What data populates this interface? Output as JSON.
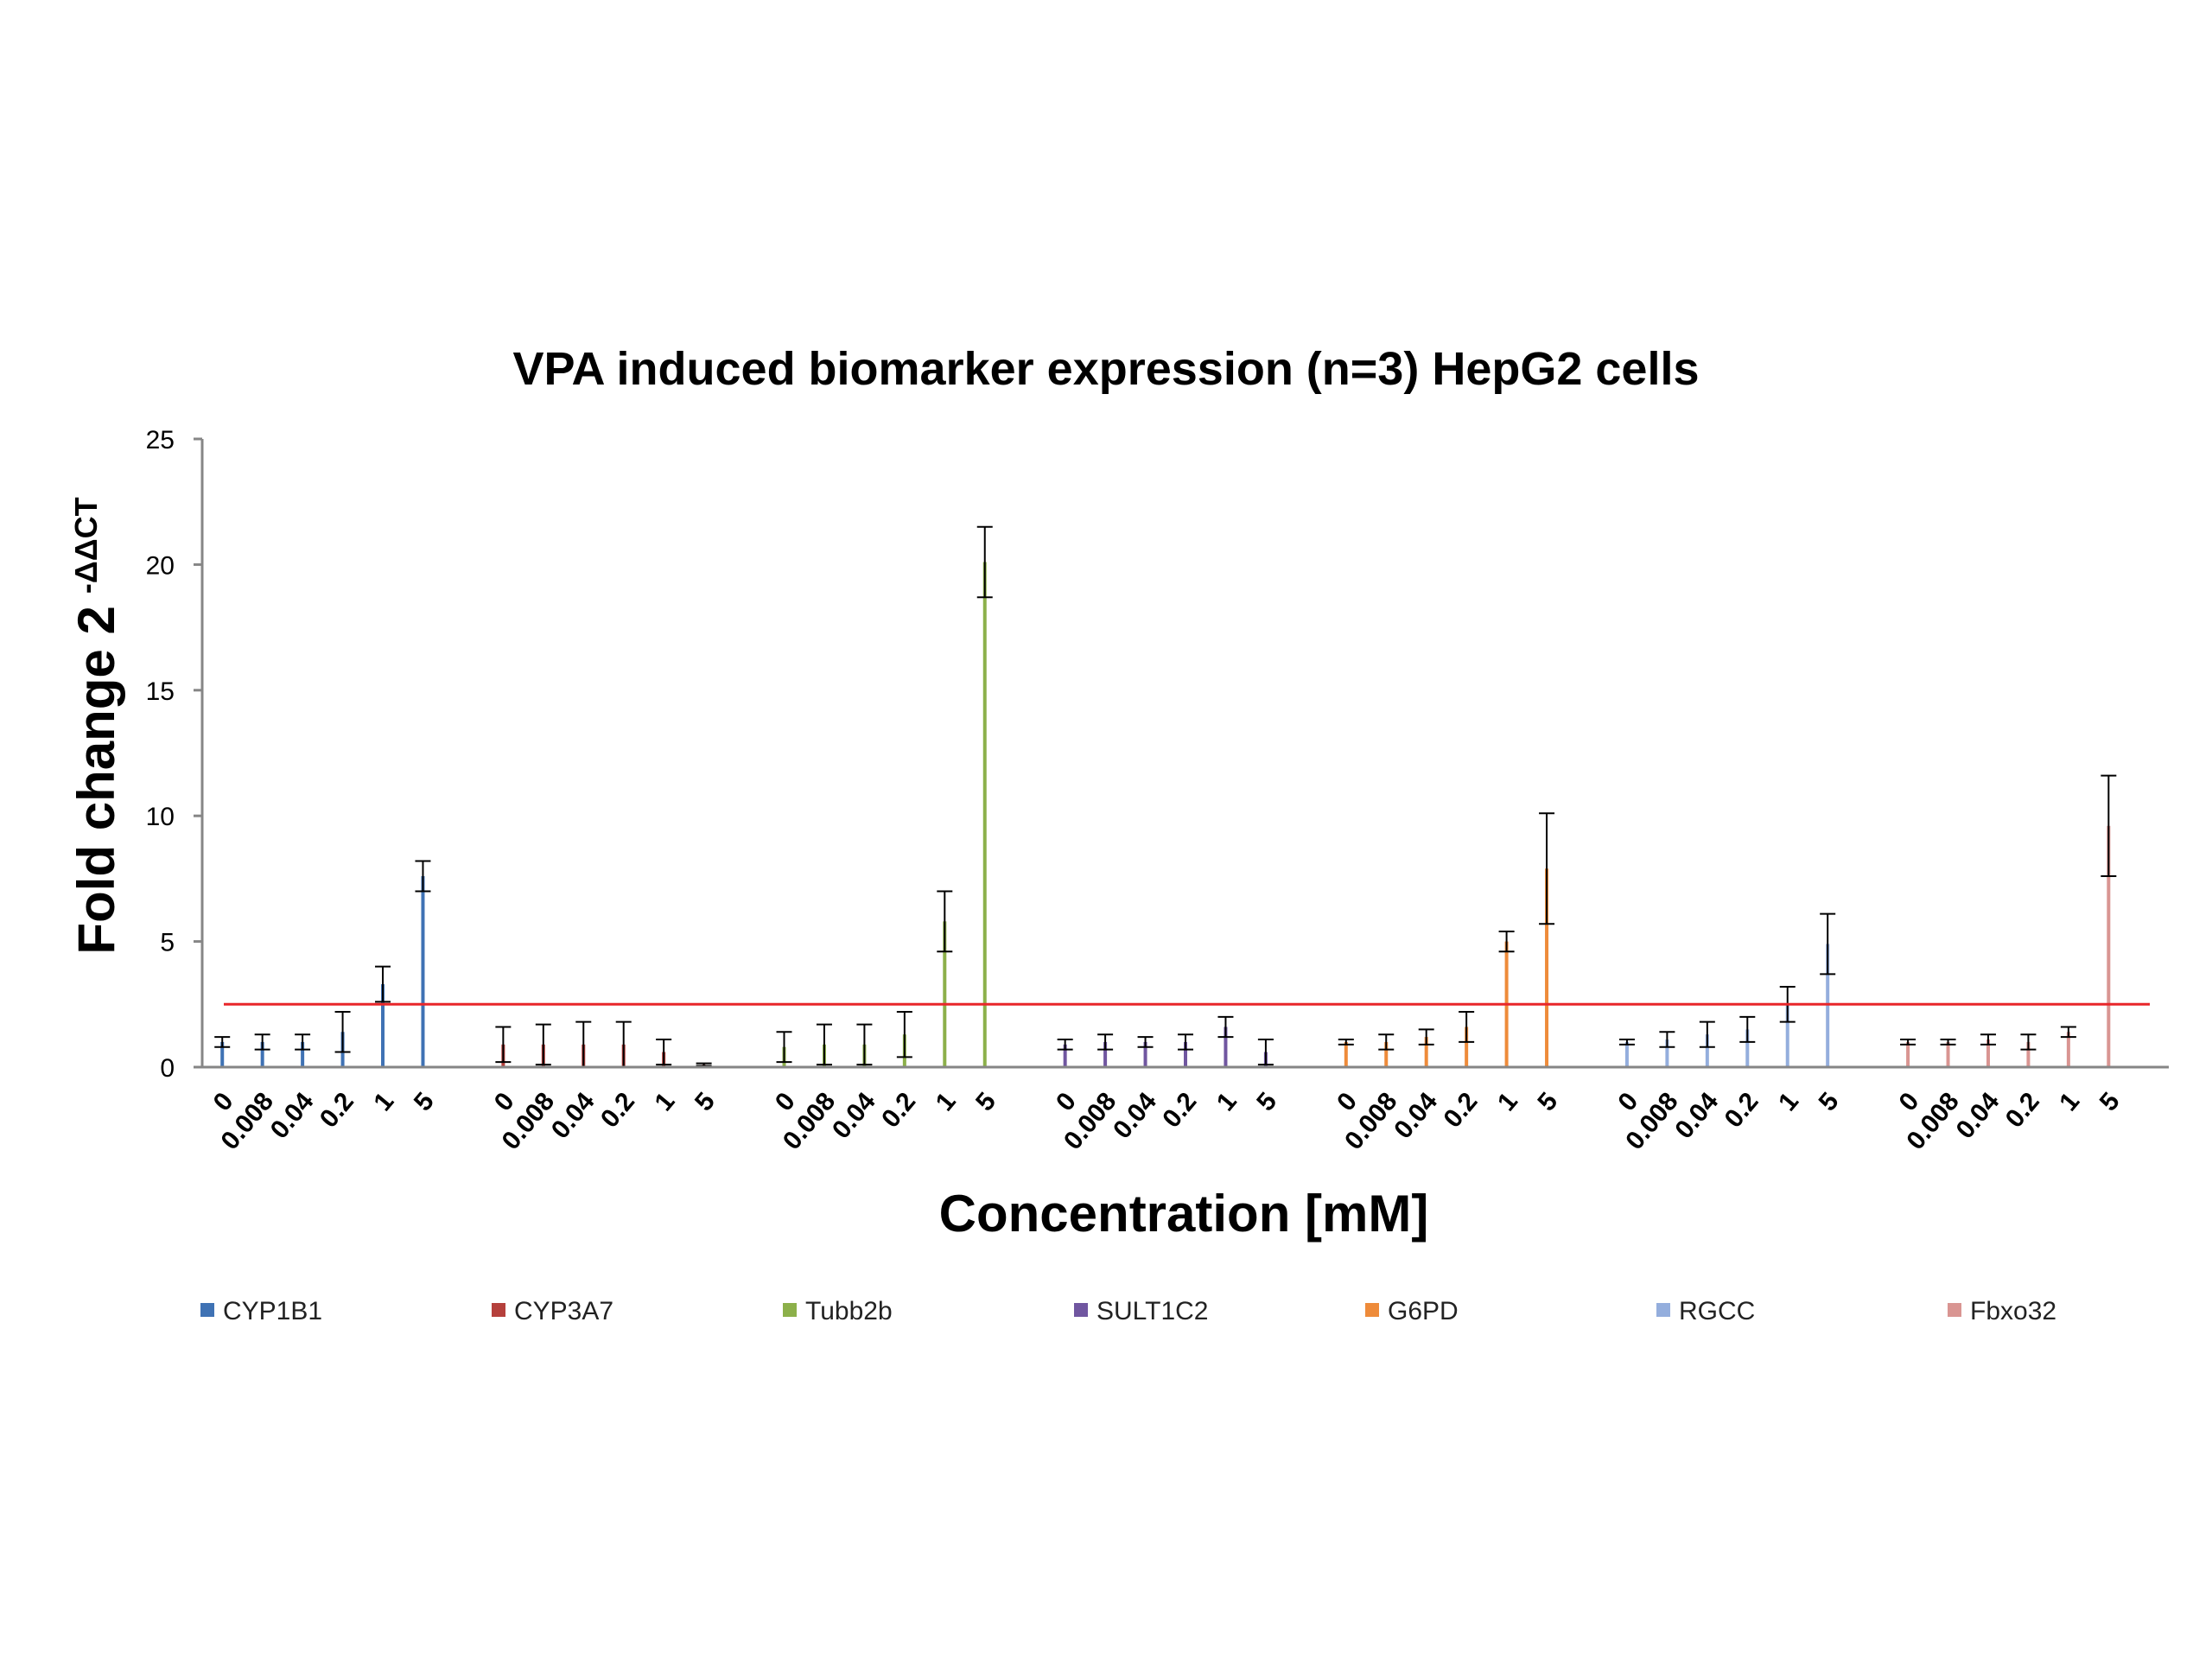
{
  "chart_data": {
    "type": "bar",
    "title": "VPA induced biomarker expression (n=3) HepG2 cells",
    "xlabel": "Concentration [mM]",
    "ylabel": "Fold change 2",
    "ylabel_superscript": "-ΔΔCT",
    "ylim": [
      0,
      25
    ],
    "yticks": [
      "0",
      "5",
      "10",
      "15",
      "20",
      "25"
    ],
    "categories": [
      "0",
      "0.008",
      "0.04",
      "0.2",
      "1",
      "5"
    ],
    "threshold_line": {
      "value": 2.5,
      "color": "#e8262a"
    },
    "legend_position": "bottom",
    "series": [
      {
        "name": "CYP1B1",
        "color": "#3f72b4",
        "values": [
          1.0,
          1.0,
          1.0,
          1.4,
          3.3,
          7.6
        ],
        "errors": [
          0.2,
          0.3,
          0.3,
          0.8,
          0.7,
          0.6
        ]
      },
      {
        "name": "CYP3A7",
        "color": "#b5403c",
        "values": [
          0.9,
          0.9,
          0.9,
          0.9,
          0.6,
          0.1
        ],
        "errors": [
          0.7,
          0.8,
          0.9,
          0.9,
          0.5,
          0.05
        ]
      },
      {
        "name": "Tubb2b",
        "color": "#8cb04a",
        "values": [
          0.8,
          0.9,
          0.9,
          1.3,
          5.8,
          20.1
        ],
        "errors": [
          0.6,
          0.8,
          0.8,
          0.9,
          1.2,
          1.4
        ]
      },
      {
        "name": "SULT1C2",
        "color": "#7056a0",
        "values": [
          0.9,
          1.0,
          1.0,
          1.0,
          1.6,
          0.6
        ],
        "errors": [
          0.2,
          0.3,
          0.2,
          0.3,
          0.4,
          0.5
        ]
      },
      {
        "name": "G6PD",
        "color": "#ee8b3a",
        "values": [
          1.0,
          1.0,
          1.2,
          1.6,
          5.0,
          7.9
        ],
        "errors": [
          0.1,
          0.3,
          0.3,
          0.6,
          0.4,
          2.2
        ]
      },
      {
        "name": "RGCC",
        "color": "#94aedd",
        "values": [
          1.0,
          1.1,
          1.3,
          1.5,
          2.5,
          4.9
        ],
        "errors": [
          0.1,
          0.3,
          0.5,
          0.5,
          0.7,
          1.2
        ]
      },
      {
        "name": "Fbxo32",
        "color": "#d99592",
        "values": [
          1.0,
          1.0,
          1.1,
          1.0,
          1.4,
          9.6
        ],
        "errors": [
          0.1,
          0.1,
          0.2,
          0.3,
          0.2,
          2.0
        ]
      }
    ]
  }
}
